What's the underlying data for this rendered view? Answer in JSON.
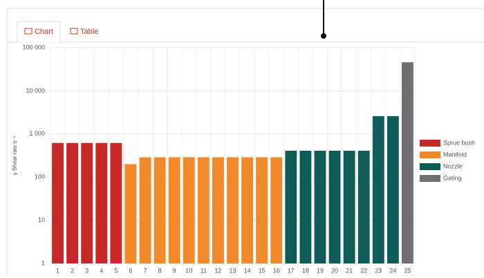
{
  "tabs": [
    "Chart",
    "Table"
  ],
  "chart_data": {
    "type": "bar",
    "y_label": "γ Shear rate s⁻¹",
    "categories": [
      "1",
      "2",
      "3",
      "4",
      "5",
      "6",
      "7",
      "8",
      "9",
      "10",
      "11",
      "12",
      "13",
      "14",
      "15",
      "16",
      "17",
      "18",
      "19",
      "20",
      "21",
      "22",
      "23",
      "24",
      "25"
    ],
    "series": [
      {
        "name": "Sprue bush",
        "color": "#c62828",
        "values": [
          620,
          620,
          620,
          620,
          620,
          null,
          null,
          null,
          null,
          null,
          null,
          null,
          null,
          null,
          null,
          null,
          null,
          null,
          null,
          null,
          null,
          null,
          null,
          null,
          null
        ]
      },
      {
        "name": "Manifold",
        "color": "#f08a2b",
        "values": [
          null,
          null,
          null,
          null,
          null,
          200,
          290,
          290,
          290,
          290,
          290,
          290,
          290,
          290,
          290,
          290,
          null,
          null,
          null,
          null,
          null,
          null,
          null,
          null,
          null
        ]
      },
      {
        "name": "Nozzle",
        "color": "#0d5c58",
        "values": [
          null,
          null,
          null,
          null,
          null,
          null,
          null,
          null,
          null,
          null,
          null,
          null,
          null,
          null,
          null,
          null,
          410,
          410,
          410,
          410,
          410,
          410,
          2600,
          2600,
          null
        ]
      },
      {
        "name": "Gating",
        "color": "#6d6f70",
        "values": [
          null,
          null,
          null,
          null,
          null,
          null,
          null,
          null,
          null,
          null,
          null,
          null,
          null,
          null,
          null,
          null,
          null,
          null,
          null,
          null,
          null,
          null,
          null,
          null,
          46000
        ]
      }
    ],
    "ylim": [
      1,
      100000
    ],
    "yticks": [
      1,
      10,
      100,
      {
        "value": 1000,
        "label": "1 000"
      },
      {
        "value": 10000,
        "label": "10 000"
      },
      {
        "value": 100000,
        "label": "100 000"
      }
    ],
    "log_scale": true,
    "grid": true,
    "legend": "right"
  }
}
